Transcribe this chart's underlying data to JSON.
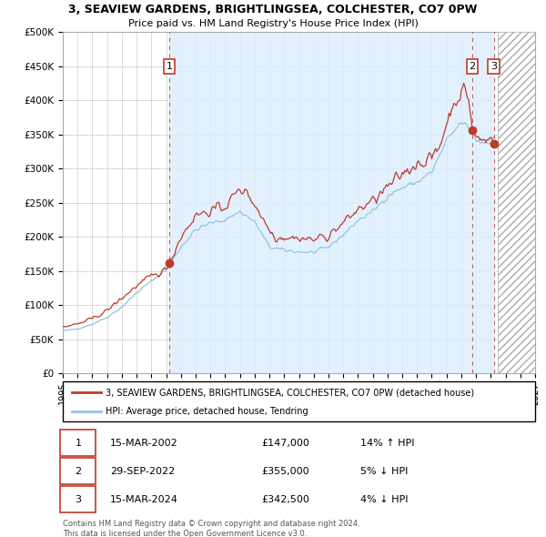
{
  "title_line1": "3, SEAVIEW GARDENS, BRIGHTLINGSEA, COLCHESTER, CO7 0PW",
  "title_line2": "Price paid vs. HM Land Registry's House Price Index (HPI)",
  "ylim": [
    0,
    500000
  ],
  "xlim_start": 1995.0,
  "xlim_end": 2027.0,
  "yticks": [
    0,
    50000,
    100000,
    150000,
    200000,
    250000,
    300000,
    350000,
    400000,
    450000,
    500000
  ],
  "ytick_labels": [
    "£0",
    "£50K",
    "£100K",
    "£150K",
    "£200K",
    "£250K",
    "£300K",
    "£350K",
    "£400K",
    "£450K",
    "£500K"
  ],
  "hpi_color": "#92c5de",
  "price_color": "#c0392b",
  "transaction_color": "#c0392b",
  "vline_color": "#c0392b",
  "shade_color": "#ddeeff",
  "transactions": [
    {
      "num": 1,
      "date_num": 2002.21,
      "price": 147000,
      "label": "15-MAR-2002",
      "price_str": "£147,000",
      "pct": "14%",
      "dir": "↑"
    },
    {
      "num": 2,
      "date_num": 2022.75,
      "price": 355000,
      "label": "29-SEP-2022",
      "price_str": "£355,000",
      "pct": "5%",
      "dir": "↓"
    },
    {
      "num": 3,
      "date_num": 2024.21,
      "price": 342500,
      "label": "15-MAR-2024",
      "price_str": "£342,500",
      "pct": "4%",
      "dir": "↓"
    }
  ],
  "legend_line1": "3, SEAVIEW GARDENS, BRIGHTLINGSEA, COLCHESTER, CO7 0PW (detached house)",
  "legend_line2": "HPI: Average price, detached house, Tendring",
  "footnote": "Contains HM Land Registry data © Crown copyright and database right 2024.\nThis data is licensed under the Open Government Licence v3.0.",
  "hatch_x_start": 2024.5,
  "hatch_x_end": 2027.0,
  "background_color": "#ffffff",
  "grid_color": "#cccccc"
}
